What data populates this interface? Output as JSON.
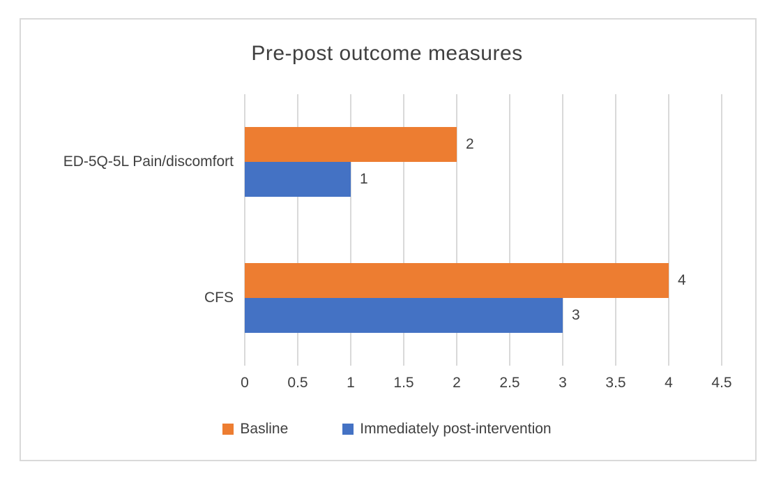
{
  "chart_data": {
    "type": "bar",
    "orientation": "horizontal",
    "title": "Pre-post outcome measures",
    "categories": [
      "ED-5Q-5L Pain/discomfort",
      "CFS"
    ],
    "series": [
      {
        "name": "Basline",
        "color": "#ED7D31",
        "values": [
          2,
          4
        ]
      },
      {
        "name": "Immediately post-intervention",
        "color": "#4472C4",
        "values": [
          1,
          3
        ]
      }
    ],
    "x_axis": {
      "min": 0,
      "max": 4.5,
      "tick_interval": 0.5,
      "tick_labels": [
        "0",
        "0.5",
        "1",
        "1.5",
        "2",
        "2.5",
        "3",
        "3.5",
        "4",
        "4.5"
      ]
    },
    "data_labels": [
      {
        "category": "ED-5Q-5L Pain/discomfort",
        "series": "Basline",
        "value": 2
      },
      {
        "category": "ED-5Q-5L Pain/discomfort",
        "series": "Immediately post-intervention",
        "value": 1
      },
      {
        "category": "CFS",
        "series": "Basline",
        "value": 4
      },
      {
        "category": "CFS",
        "series": "Immediately post-intervention",
        "value": 3
      }
    ],
    "grid": "vertical-only",
    "legend_position": "bottom",
    "colors": {
      "gridline": "#D9D9D9",
      "chart_border": "#D9D9D9",
      "text": "#404040",
      "background": "#FFFFFF"
    }
  }
}
